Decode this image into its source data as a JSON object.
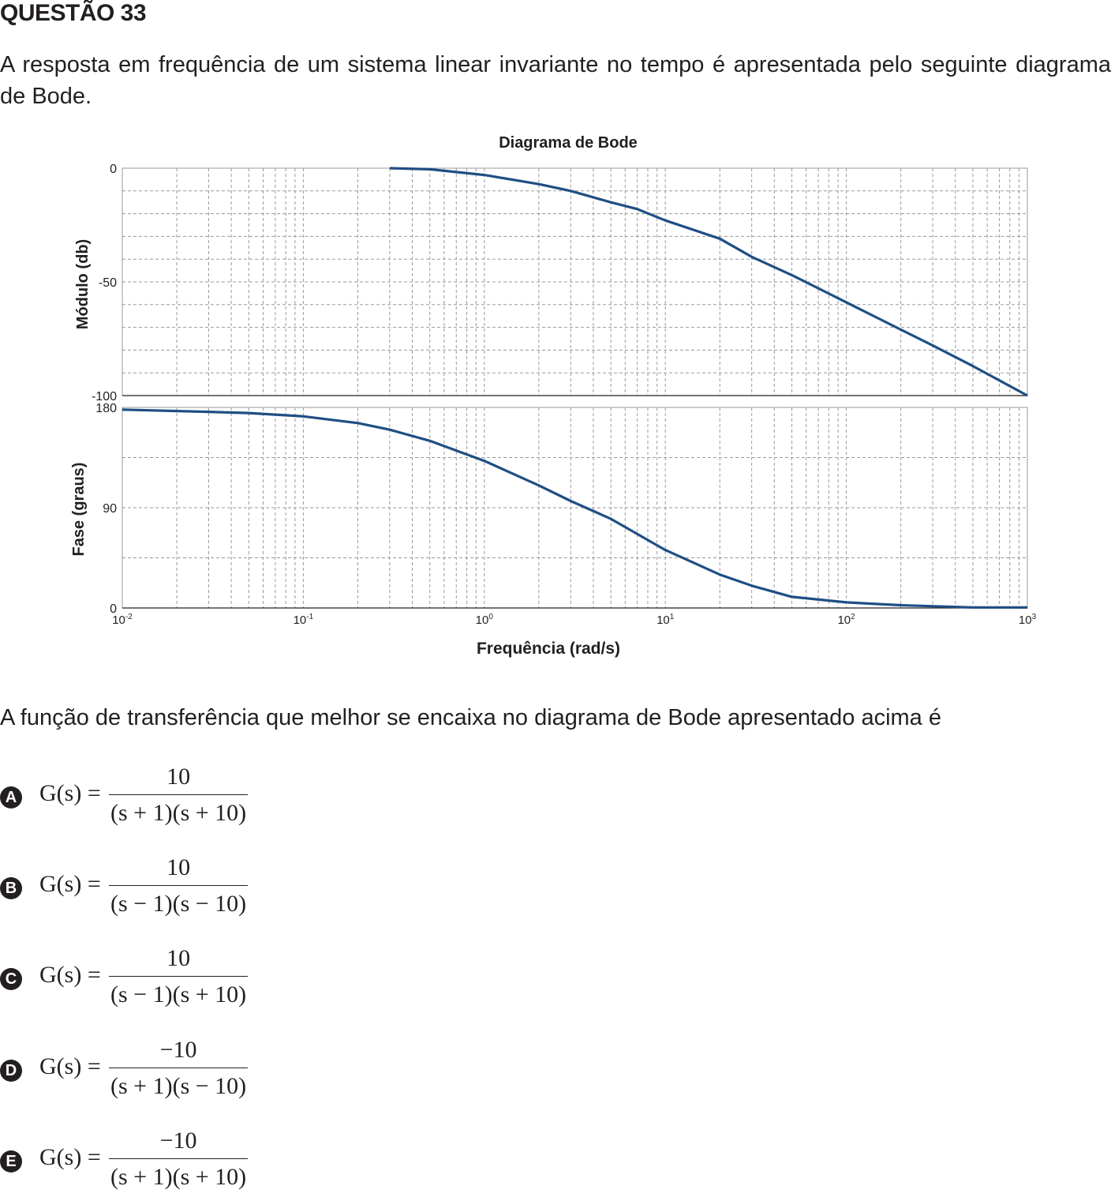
{
  "question": {
    "title": "QUESTÃO 33",
    "intro": "A resposta em frequência de um sistema linear invariante no tempo é apresentada pelo seguinte diagrama de Bode.",
    "prompt": "A função de transferência que melhor se encaixa no diagrama de Bode apresentado acima é"
  },
  "chart_data": {
    "type": "line",
    "title": "Diagrama de Bode",
    "xlabel": "Frequência (rad/s)",
    "x_scale": "log",
    "xlim": [
      0.01,
      1000
    ],
    "x_ticks": [
      "10-2",
      "10-1",
      "100",
      "101",
      "102",
      "103"
    ],
    "grid": true,
    "panels": [
      {
        "name": "magnitude",
        "ylabel": "Módulo (db)",
        "ylim": [
          -100,
          0
        ],
        "y_ticks": [
          "0",
          "-50",
          "-100"
        ],
        "series": [
          {
            "color": "#1f4e83",
            "x": [
              0.3,
              0.5,
              1,
              2,
              3,
              5,
              7,
              10,
              20,
              30,
              50,
              100,
              200,
              300,
              500,
              1000
            ],
            "y": [
              0,
              -0.5,
              -3,
              -7,
              -10,
              -15,
              -18,
              -23,
              -31,
              -39,
              -47,
              -59,
              -71,
              -78,
              -87,
              -100
            ]
          }
        ]
      },
      {
        "name": "phase",
        "ylabel": "Fase (graus)",
        "ylim": [
          0,
          180
        ],
        "y_ticks": [
          "180",
          "90",
          "0"
        ],
        "series": [
          {
            "color": "#1f4e83",
            "x": [
              0.01,
              0.03,
              0.05,
              0.1,
              0.2,
              0.3,
              0.5,
              1,
              2,
              3,
              5,
              10,
              20,
              30,
              50,
              100,
              200,
              500,
              1000
            ],
            "y": [
              178,
              176,
              175,
              172,
              166,
              160,
              150,
              132,
              110,
              96,
              80,
              52,
              30,
              20,
              10,
              5,
              2.5,
              0.5,
              0.5
            ]
          }
        ]
      }
    ]
  },
  "options": [
    {
      "letter": "A",
      "numerator": "10",
      "denominator": "(s + 1)(s + 10)"
    },
    {
      "letter": "B",
      "numerator": "10",
      "denominator": "(s − 1)(s − 10)"
    },
    {
      "letter": "C",
      "numerator": "10",
      "denominator": "(s − 1)(s + 10)"
    },
    {
      "letter": "D",
      "numerator": "−10",
      "denominator": "(s + 1)(s − 10)"
    },
    {
      "letter": "E",
      "numerator": "−10",
      "denominator": "(s + 1)(s + 10)"
    }
  ],
  "equation_lhs": "G(s) ="
}
